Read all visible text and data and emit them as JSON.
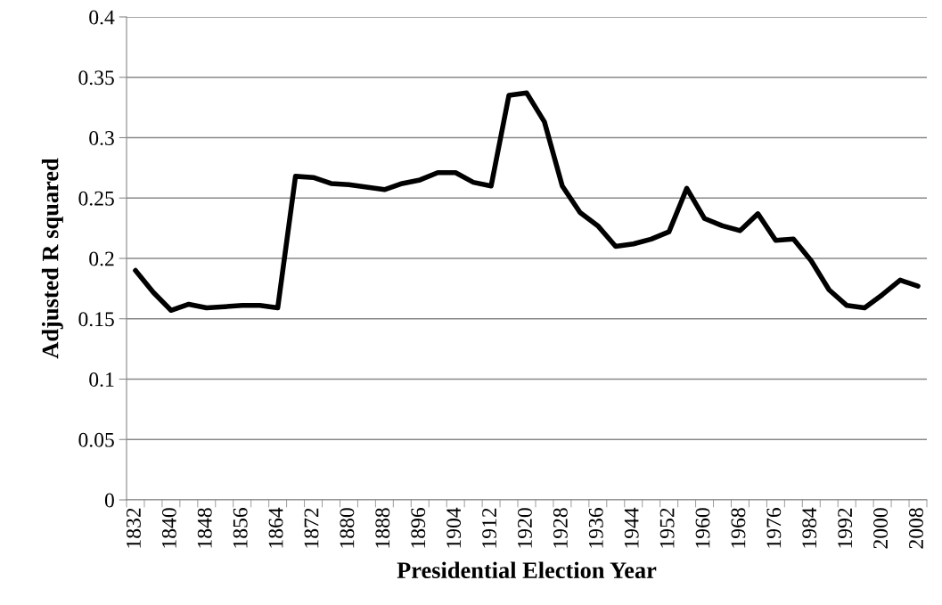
{
  "chart_data": {
    "type": "line",
    "xlabel": "Presidential Election Year",
    "ylabel": "Adjusted R squared",
    "categories": [
      "1832",
      null,
      "1840",
      null,
      "1848",
      null,
      "1856",
      null,
      "1864",
      null,
      "1872",
      null,
      "1880",
      null,
      "1888",
      null,
      "1896",
      null,
      "1904",
      null,
      "1912",
      null,
      "1920",
      null,
      "1928",
      null,
      "1936",
      null,
      "1944",
      null,
      "1952",
      null,
      "1960",
      null,
      "1968",
      null,
      "1976",
      null,
      "1984",
      null,
      "1992",
      null,
      "2000",
      null,
      "2008"
    ],
    "series": [
      {
        "color": "#000000",
        "values": [
          0.19,
          0.172,
          0.157,
          0.162,
          0.159,
          0.16,
          0.161,
          0.161,
          0.159,
          0.268,
          0.267,
          0.262,
          0.261,
          0.259,
          0.257,
          0.262,
          0.265,
          0.271,
          0.271,
          0.263,
          0.26,
          0.335,
          0.337,
          0.313,
          0.26,
          0.238,
          0.227,
          0.21,
          0.212,
          0.216,
          0.222,
          0.258,
          0.233,
          0.227,
          0.223,
          0.237,
          0.215,
          0.216,
          0.198,
          0.174,
          0.161,
          0.159,
          0.17,
          0.182,
          0.177
        ]
      }
    ],
    "ylim": [
      0,
      0.4
    ],
    "yticks": [
      0,
      0.05,
      0.1,
      0.15,
      0.2,
      0.25,
      0.3,
      0.35,
      0.4
    ],
    "grid": "y",
    "marker": "none",
    "line_style": "solid"
  }
}
